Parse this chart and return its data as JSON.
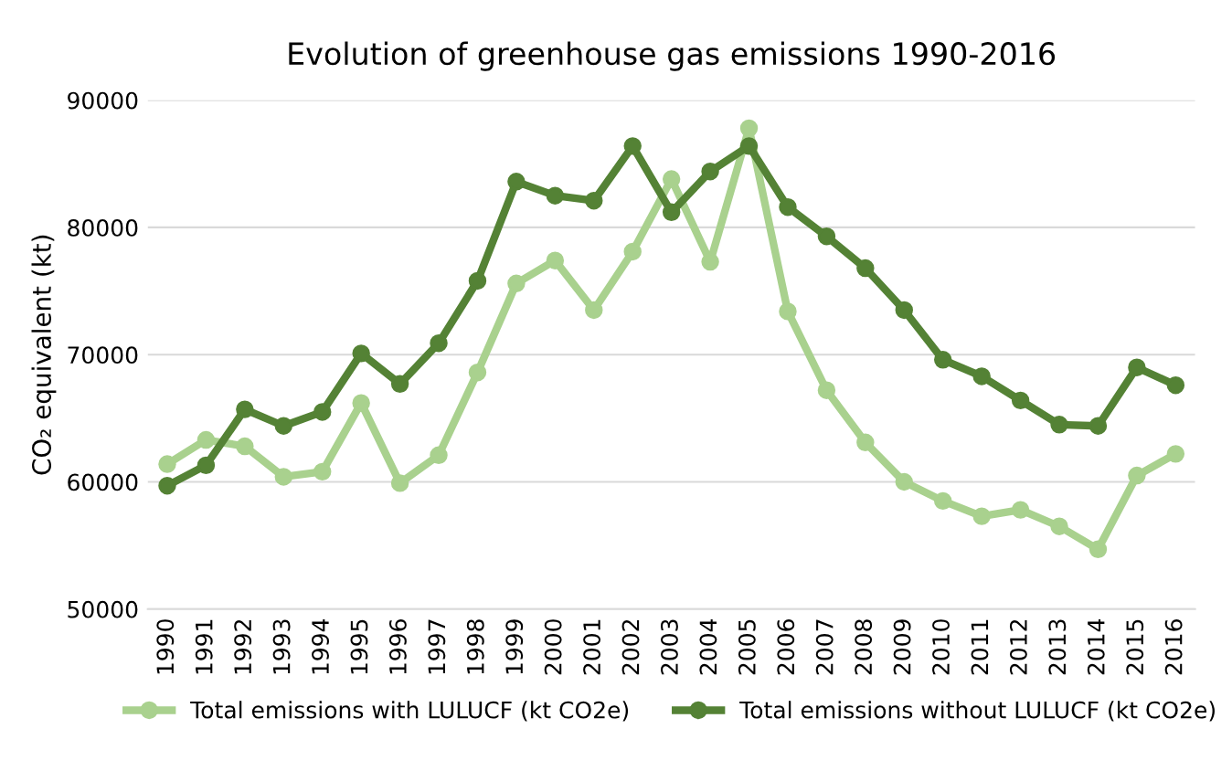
{
  "chart_data": {
    "type": "line",
    "title": "Evolution of greenhouse gas emissions 1990-2016",
    "ylabel": "CO₂ equivalent (kt)",
    "categories": [
      "1990",
      "1991",
      "1992",
      "1993",
      "1994",
      "1995",
      "1996",
      "1997",
      "1998",
      "1999",
      "2000",
      "2001",
      "2002",
      "2003",
      "2004",
      "2005",
      "2006",
      "2007",
      "2008",
      "2009",
      "2010",
      "2011",
      "2012",
      "2013",
      "2014",
      "2015",
      "2016"
    ],
    "series": [
      {
        "name": "Total emissions with LULUCF (kt CO2e)",
        "color": "#a9d18e",
        "values": [
          61400,
          63300,
          62800,
          60400,
          60800,
          66200,
          59900,
          62100,
          68600,
          75600,
          77400,
          73500,
          78100,
          83800,
          77300,
          87800,
          73400,
          67200,
          63100,
          60000,
          58500,
          57300,
          57800,
          56500,
          54700,
          60500,
          62200
        ]
      },
      {
        "name": "Total emissions without LULUCF (kt CO2e)",
        "color": "#548235",
        "values": [
          59700,
          61300,
          65700,
          64400,
          65500,
          70100,
          67700,
          70900,
          75800,
          83600,
          82500,
          82100,
          86400,
          81200,
          84400,
          86400,
          81600,
          79300,
          76800,
          73500,
          69600,
          68300,
          66400,
          64500,
          64400,
          69000,
          67600
        ]
      }
    ],
    "ylim": [
      50000,
      90000
    ],
    "yticks": [
      50000,
      60000,
      70000,
      80000,
      90000
    ],
    "grid": "y",
    "legend": "bottom",
    "marker": "circle",
    "line_style": "solid"
  }
}
